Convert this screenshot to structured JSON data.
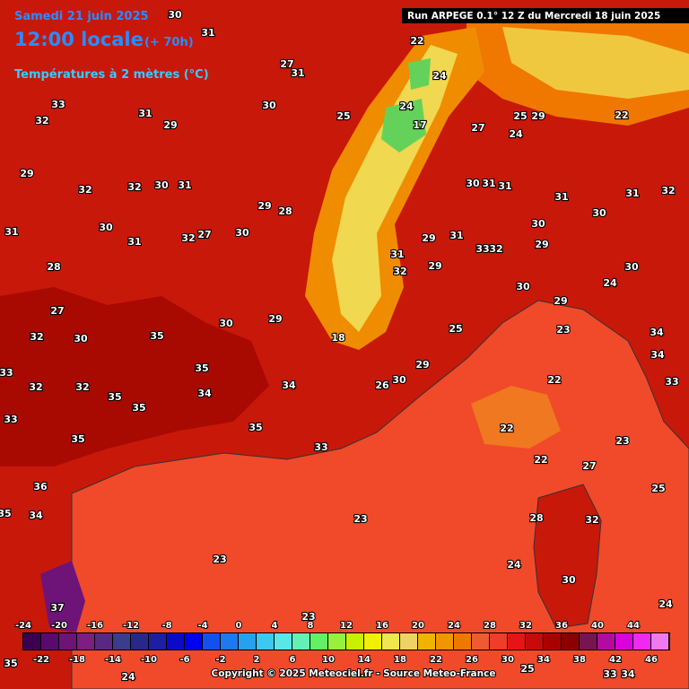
{
  "header": {
    "date": "Samedi 21 juin 2025",
    "time": "12:00 locale",
    "lead": "(+ 70h)",
    "field": "Températures à 2 mètres (°C)"
  },
  "run": "Run ARPEGE 0.1° 12 Z du Mercredi 18 juin 2025",
  "legend": {
    "ticks_top": [
      -24,
      -20,
      -16,
      -12,
      -8,
      -4,
      0,
      4,
      8,
      12,
      16,
      20,
      24,
      28,
      32,
      36,
      40,
      44
    ],
    "ticks_bottom": [
      -22,
      -18,
      -14,
      -10,
      -6,
      -2,
      2,
      6,
      10,
      14,
      18,
      22,
      26,
      30,
      34,
      38,
      42,
      46
    ],
    "colors": [
      "#3c0050",
      "#5a0a6e",
      "#6e1478",
      "#7d1e82",
      "#5a2882",
      "#3c3c8c",
      "#28288c",
      "#1e1ea0",
      "#0a0ac8",
      "#0000f0",
      "#1450f0",
      "#1e78f0",
      "#28a0f0",
      "#3cc8f0",
      "#5ae6e6",
      "#64f0b4",
      "#64f064",
      "#96f03c",
      "#c8f000",
      "#f0f000",
      "#f0e650",
      "#f0d264",
      "#f0b400",
      "#f09600",
      "#f07800",
      "#f05a32",
      "#f03c28",
      "#e61414",
      "#c80a0a",
      "#aa0000",
      "#8c0000",
      "#781450",
      "#b40aa0",
      "#dc00dc",
      "#f028f0",
      "#f078f0"
    ]
  },
  "labels": [
    30,
    31,
    33,
    32,
    31,
    29,
    30,
    31,
    27,
    22,
    24,
    25,
    24,
    17,
    27,
    24,
    25,
    29,
    22,
    32,
    31,
    31,
    30,
    30,
    31,
    31,
    29,
    31,
    33,
    32,
    30,
    29,
    29,
    32,
    31,
    30,
    29,
    24,
    30,
    23,
    34,
    34,
    33,
    22,
    22,
    23,
    27,
    25,
    22,
    23,
    23,
    24,
    24,
    23,
    30,
    28,
    32,
    35,
    35,
    34,
    35,
    33,
    34,
    30,
    26,
    29,
    25,
    18,
    30,
    29,
    30,
    28,
    29,
    31,
    30,
    32,
    32,
    29,
    31,
    28,
    27,
    30,
    32,
    33,
    32,
    32,
    35,
    35,
    35,
    33,
    36,
    34,
    35,
    37,
    35,
    24,
    33,
    34,
    25,
    27,
    32,
    31,
    30
  ],
  "copyright": "Copyright © 2025 Meteociel.fr - Source Meteo-France"
}
